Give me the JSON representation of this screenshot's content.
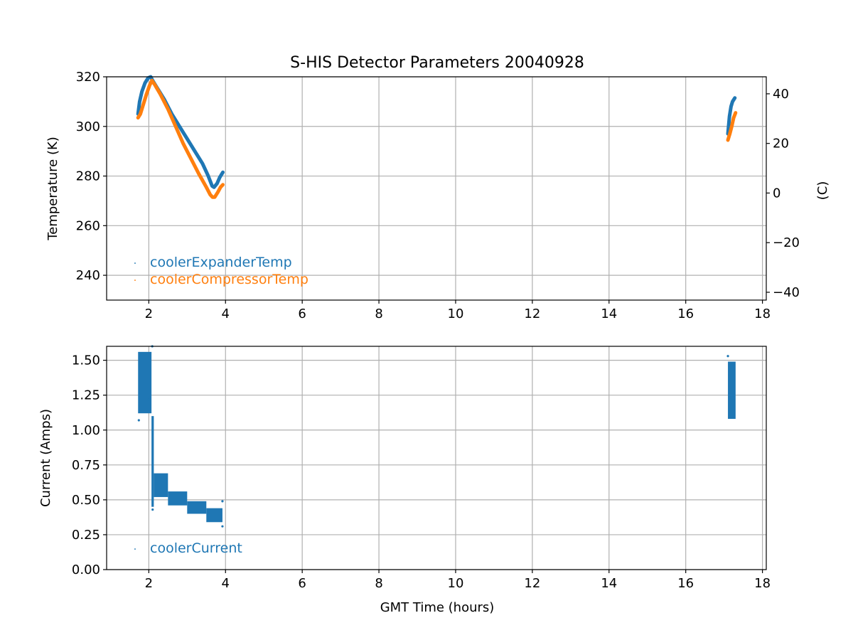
{
  "chart_data": [
    {
      "type": "scatter",
      "title": "S-HIS Detector Parameters 20040928",
      "xlabel": "",
      "ylabel": "Temperature (K)",
      "y2label": "(C)",
      "xlim": [
        0.9,
        18.1
      ],
      "ylim": [
        230,
        320
      ],
      "y2lim": [
        -43.15,
        46.85
      ],
      "xticks": [
        2,
        4,
        6,
        8,
        10,
        12,
        14,
        16,
        18
      ],
      "yticks": [
        240,
        260,
        280,
        300,
        320
      ],
      "y2ticks": [
        -40,
        -20,
        0,
        20,
        40
      ],
      "y2tick_labels": [
        "−40",
        "−20",
        "0",
        "20",
        "40"
      ],
      "grid": true,
      "legend_position": "lower-left",
      "series": [
        {
          "name": "coolerExpanderTemp",
          "color": "#1f77b4",
          "segments": [
            [
              [
                1.72,
                305
              ],
              [
                1.76,
                310
              ],
              [
                1.82,
                314
              ],
              [
                1.9,
                317.5
              ],
              [
                1.98,
                319.5
              ],
              [
                2.05,
                320
              ],
              [
                2.1,
                318.5
              ],
              [
                2.2,
                316
              ],
              [
                2.4,
                311
              ],
              [
                2.6,
                305
              ],
              [
                2.8,
                300
              ],
              [
                3.0,
                295
              ],
              [
                3.2,
                290
              ],
              [
                3.4,
                285
              ],
              [
                3.55,
                280
              ],
              [
                3.65,
                276
              ],
              [
                3.7,
                275.5
              ],
              [
                3.78,
                277
              ],
              [
                3.85,
                279.5
              ],
              [
                3.93,
                281.5
              ]
            ],
            [
              [
                17.1,
                297
              ],
              [
                17.14,
                304
              ],
              [
                17.18,
                308
              ],
              [
                17.22,
                310
              ],
              [
                17.28,
                311.5
              ]
            ]
          ]
        },
        {
          "name": "coolerCompressorTemp",
          "color": "#ff7f0e",
          "segments": [
            [
              [
                1.72,
                303.5
              ],
              [
                1.78,
                305
              ],
              [
                1.86,
                309
              ],
              [
                1.94,
                313
              ],
              [
                2.02,
                316.5
              ],
              [
                2.08,
                318.5
              ],
              [
                2.15,
                317
              ],
              [
                2.3,
                313
              ],
              [
                2.5,
                307
              ],
              [
                2.7,
                300
              ],
              [
                2.9,
                293
              ],
              [
                3.1,
                287
              ],
              [
                3.3,
                281
              ],
              [
                3.5,
                275.5
              ],
              [
                3.6,
                272.5
              ],
              [
                3.66,
                271.5
              ],
              [
                3.72,
                271.5
              ],
              [
                3.8,
                273.5
              ],
              [
                3.87,
                275.5
              ],
              [
                3.93,
                276.5
              ]
            ],
            [
              [
                17.1,
                294.5
              ],
              [
                17.15,
                297
              ],
              [
                17.2,
                300
              ],
              [
                17.25,
                303.5
              ],
              [
                17.3,
                305.5
              ]
            ]
          ]
        }
      ]
    },
    {
      "type": "scatter",
      "title": "",
      "xlabel": "GMT Time (hours)",
      "ylabel": "Current (Amps)",
      "xlim": [
        0.9,
        18.1
      ],
      "ylim": [
        0,
        1.6
      ],
      "xticks": [
        2,
        4,
        6,
        8,
        10,
        12,
        14,
        16,
        18
      ],
      "yticks": [
        0,
        0.25,
        0.5,
        0.75,
        1.0,
        1.25,
        1.5
      ],
      "ytick_labels": [
        "0.00",
        "0.25",
        "0.50",
        "0.75",
        "1.00",
        "1.25",
        "1.50"
      ],
      "grid": true,
      "legend_position": "lower-left",
      "series": [
        {
          "name": "coolerCurrent",
          "color": "#1f77b4",
          "bands": [
            {
              "x": [
                1.72,
                2.07
              ],
              "lo": 1.12,
              "hi": 1.56
            },
            {
              "x": [
                2.07,
                2.13
              ],
              "lo": 0.45,
              "hi": 1.1
            },
            {
              "x": [
                2.13,
                2.5
              ],
              "lo": 0.52,
              "hi": 0.69
            },
            {
              "x": [
                2.5,
                3.0
              ],
              "lo": 0.46,
              "hi": 0.56
            },
            {
              "x": [
                3.0,
                3.5
              ],
              "lo": 0.4,
              "hi": 0.49
            },
            {
              "x": [
                3.5,
                3.92
              ],
              "lo": 0.34,
              "hi": 0.44
            },
            {
              "x": [
                17.1,
                17.3
              ],
              "lo": 1.08,
              "hi": 1.49
            }
          ],
          "outliers": [
            [
              1.74,
              1.07
            ],
            [
              2.09,
              1.6
            ],
            [
              2.1,
              0.43
            ],
            [
              3.92,
              0.31
            ],
            [
              3.92,
              0.49
            ],
            [
              17.1,
              1.53
            ],
            [
              2.0,
              1.22
            ]
          ]
        }
      ]
    }
  ]
}
